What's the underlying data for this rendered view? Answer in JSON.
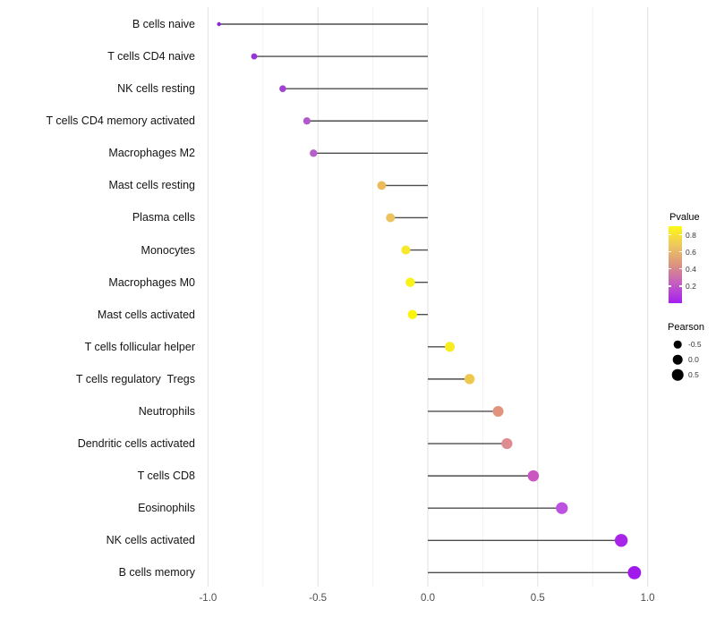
{
  "chart_data": {
    "type": "lollipop",
    "orientation": "horizontal",
    "title": "",
    "xlabel": "",
    "ylabel": "",
    "x_axis": {
      "ticks": [
        -1.0,
        -0.5,
        0.0,
        0.5,
        1.0
      ],
      "tick_labels": [
        "-1.0",
        "-0.5",
        "0.0",
        "0.5",
        "1.0"
      ],
      "minor_gridlines": [
        -0.75,
        -0.25,
        0.25,
        0.75
      ],
      "range": [
        -1.05,
        1.06
      ],
      "grid": true
    },
    "points": [
      {
        "label": "B cells naive",
        "pearson": -0.95,
        "pvalue_approx": 0.02,
        "color": "#8B24DE",
        "radius": 2.2
      },
      {
        "label": "T cells CD4 naive",
        "pearson": -0.79,
        "pvalue_approx": 0.08,
        "color": "#9934DA",
        "radius": 3.4
      },
      {
        "label": "NK cells resting",
        "pearson": -0.66,
        "pvalue_approx": 0.13,
        "color": "#A441D4",
        "radius": 3.8
      },
      {
        "label": "T cells CD4 memory activated",
        "pearson": -0.55,
        "pvalue_approx": 0.22,
        "color": "#B258CD",
        "radius": 4.1
      },
      {
        "label": "Macrophages M2",
        "pearson": -0.52,
        "pvalue_approx": 0.25,
        "color": "#B75FCA",
        "radius": 4.2
      },
      {
        "label": "Mast cells resting",
        "pearson": -0.21,
        "pvalue_approx": 0.62,
        "color": "#EBBB5C",
        "radius": 4.9
      },
      {
        "label": "Plasma cells",
        "pearson": -0.17,
        "pvalue_approx": 0.66,
        "color": "#EDC35E",
        "radius": 5.0
      },
      {
        "label": "Monocytes",
        "pearson": -0.1,
        "pvalue_approx": 0.82,
        "color": "#F6E92B",
        "radius": 5.1
      },
      {
        "label": "Macrophages M0",
        "pearson": -0.08,
        "pvalue_approx": 0.87,
        "color": "#F9F215",
        "radius": 5.2
      },
      {
        "label": "Mast cells activated",
        "pearson": -0.07,
        "pvalue_approx": 0.88,
        "color": "#FAF40F",
        "radius": 5.2
      },
      {
        "label": "T cells follicular helper",
        "pearson": 0.1,
        "pvalue_approx": 0.84,
        "color": "#F7EC20",
        "radius": 5.5
      },
      {
        "label": "T cells regulatory  Tregs",
        "pearson": 0.19,
        "pvalue_approx": 0.7,
        "color": "#EFC84F",
        "radius": 5.7
      },
      {
        "label": "Neutrophils",
        "pearson": 0.32,
        "pvalue_approx": 0.52,
        "color": "#E0947E",
        "radius": 6.0
      },
      {
        "label": "Dendritic cells activated",
        "pearson": 0.36,
        "pvalue_approx": 0.48,
        "color": "#DE8B92",
        "radius": 6.1
      },
      {
        "label": "T cells CD8",
        "pearson": 0.48,
        "pvalue_approx": 0.3,
        "color": "#CA57C0",
        "radius": 6.3
      },
      {
        "label": "Eosinophils",
        "pearson": 0.61,
        "pvalue_approx": 0.2,
        "color": "#BC52DF",
        "radius": 6.6
      },
      {
        "label": "NK cells activated",
        "pearson": 0.88,
        "pvalue_approx": 0.06,
        "color": "#A724E8",
        "radius": 7.2
      },
      {
        "label": "B cells memory",
        "pearson": 0.94,
        "pvalue_approx": 0.03,
        "color": "#A01BEB",
        "radius": 7.4
      }
    ],
    "legend": {
      "pvalue": {
        "title": "Pvalue",
        "tick_values": [
          0.8,
          0.6,
          0.4,
          0.2
        ],
        "tick_labels": [
          "0.8",
          "0.6",
          "0.4",
          "0.2"
        ],
        "bar_range_top": 0.9,
        "bar_range_bottom": 0.0,
        "gradient_stops": [
          "#FDF914",
          "#EEC75F",
          "#DB937F",
          "#C45CC3",
          "#A51FF0"
        ]
      },
      "pearson": {
        "title": "Pearson",
        "items": [
          {
            "label": "-0.5",
            "radius": 4.3
          },
          {
            "label": "0.0",
            "radius": 5.3
          },
          {
            "label": "0.5",
            "radius": 6.3
          }
        ],
        "dot_color": "#000000"
      }
    },
    "style": {
      "segment_color": "#4d4d4d",
      "major_grid_color": "#e4e4e4",
      "minor_grid_color": "#f2f2f2",
      "background": "#ffffff"
    }
  }
}
